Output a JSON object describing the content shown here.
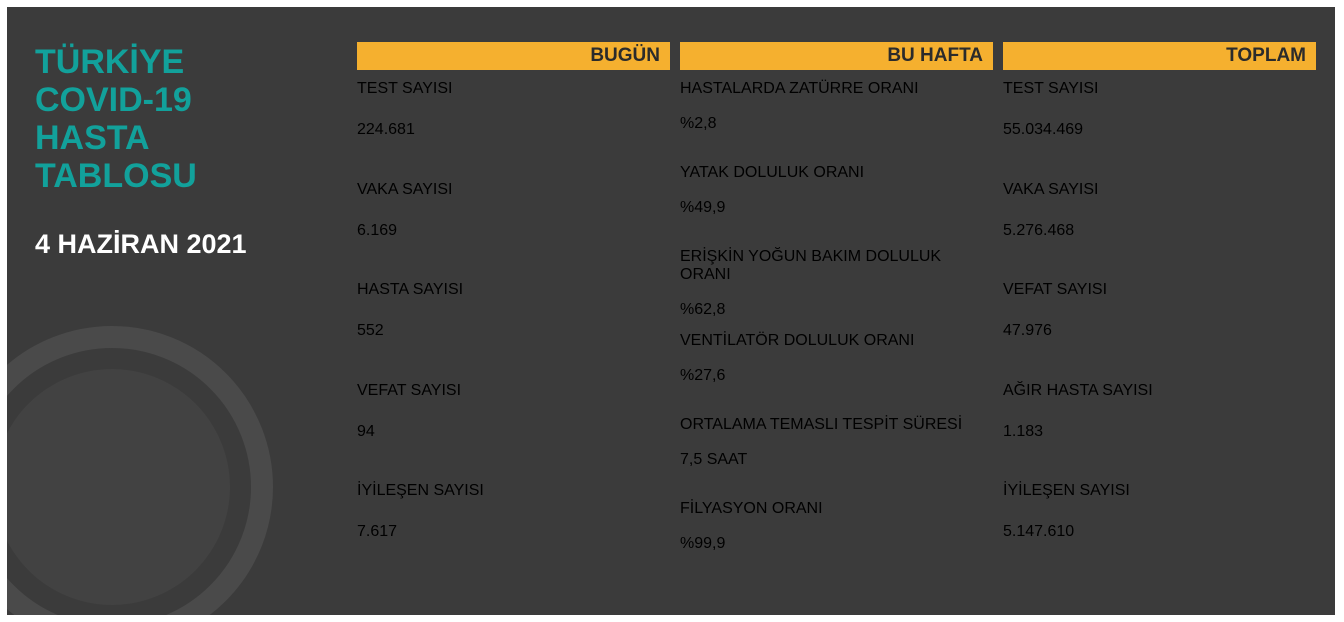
{
  "header": {
    "title_lines": [
      "TÜRKİYE",
      "COVID-19",
      "HASTA",
      "TABLOSU"
    ],
    "date": "4 HAZİRAN 2021"
  },
  "columns": [
    {
      "title": "BUGÜN",
      "items": [
        {
          "label": "TEST SAYISI",
          "value": "224.681"
        },
        {
          "label": "VAKA SAYISI",
          "value": "6.169"
        },
        {
          "label": "HASTA SAYISI",
          "value": "552"
        },
        {
          "label": "VEFAT SAYISI",
          "value": "94"
        },
        {
          "label": "İYİLEŞEN SAYISI",
          "value": "7.617"
        }
      ]
    },
    {
      "title": "BU HAFTA",
      "items": [
        {
          "label": "HASTALARDA ZATÜRRE ORANI",
          "value": "%2,8"
        },
        {
          "label": "YATAK DOLULUK ORANI",
          "value": "%49,9"
        },
        {
          "label": "ERİŞKİN YOĞUN BAKIM DOLULUK ORANI",
          "value": "%62,8"
        },
        {
          "label": "VENTİLATÖR DOLULUK ORANI",
          "value": "%27,6"
        },
        {
          "label": "ORTALAMA TEMASLI TESPİT SÜRESİ",
          "value": "7,5 SAAT"
        },
        {
          "label": "FİLYASYON ORANI",
          "value": "%99,9"
        }
      ]
    },
    {
      "title": "TOPLAM",
      "items": [
        {
          "label": "TEST SAYISI",
          "value": "55.034.469"
        },
        {
          "label": "VAKA SAYISI",
          "value": "5.276.468"
        },
        {
          "label": "VEFAT SAYISI",
          "value": "47.976"
        },
        {
          "label": "AĞIR HASTA SAYISI",
          "value": "1.183"
        },
        {
          "label": "İYİLEŞEN SAYISI",
          "value": "5.147.610"
        }
      ]
    }
  ]
}
